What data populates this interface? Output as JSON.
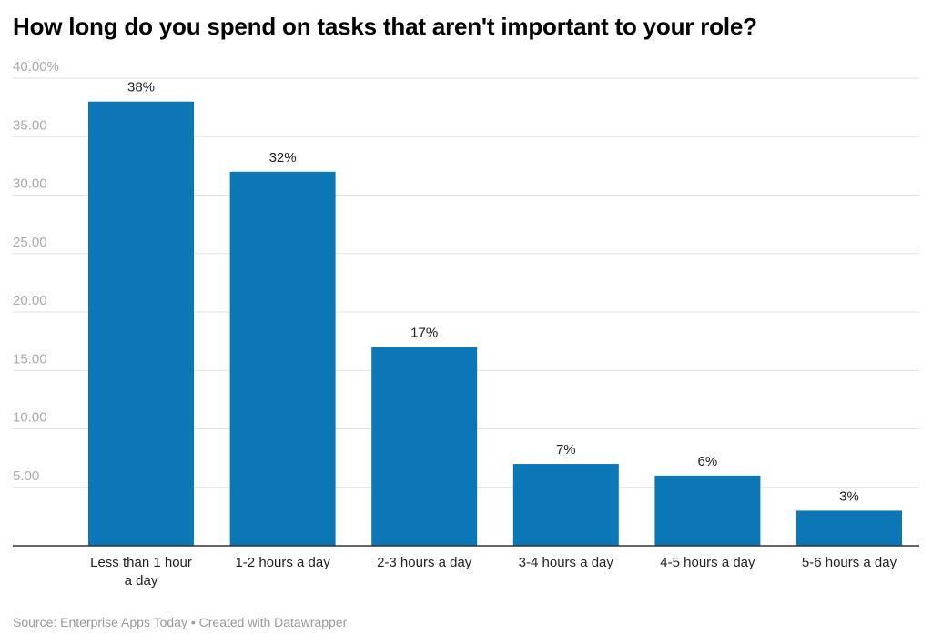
{
  "chart_data": {
    "type": "bar",
    "title": "How long do you spend on tasks that aren't important to your role?",
    "categories": [
      "Less than 1 hour a day",
      "1-2 hours a day",
      "2-3 hours a day",
      "3-4 hours a day",
      "4-5 hours a day",
      "5-6 hours a day"
    ],
    "values": [
      38,
      32,
      17,
      7,
      6,
      3
    ],
    "data_labels": [
      "38%",
      "32%",
      "17%",
      "7%",
      "6%",
      "3%"
    ],
    "ylim": [
      0,
      40
    ],
    "yticks": [
      5,
      10,
      15,
      20,
      25,
      30,
      35,
      40
    ],
    "ytick_labels": [
      "5.00",
      "10.00",
      "15.00",
      "20.00",
      "25.00",
      "30.00",
      "35.00",
      "40.00%"
    ],
    "grid": true,
    "bar_color": "#0b77b6",
    "source": "Source: Enterprise Apps Today • Created with Datawrapper"
  }
}
